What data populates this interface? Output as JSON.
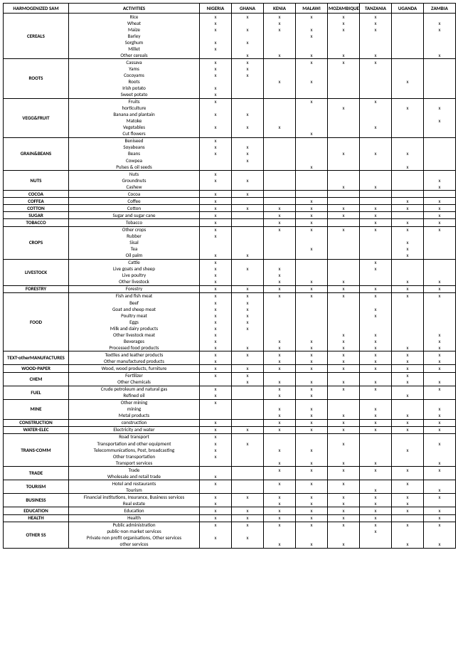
{
  "headers": {
    "sam": "HARMOGENIZED SAM",
    "activities": "ACTIVITIES",
    "countries": [
      "NIGERIA",
      "GHANA",
      "KENIA",
      "MALAWI",
      "MOZAMBIQUE",
      "TANZANIA",
      "UGANDA",
      "ZAMBIA"
    ]
  },
  "mark": "x",
  "groups": [
    {
      "cat": "CEREALS",
      "rows": [
        {
          "a": "Rice",
          "m": [
            1,
            1,
            1,
            1,
            1,
            1,
            0,
            0
          ]
        },
        {
          "a": "Wheat",
          "m": [
            1,
            0,
            1,
            0,
            1,
            1,
            0,
            1
          ]
        },
        {
          "a": "Maize",
          "m": [
            1,
            1,
            1,
            1,
            1,
            1,
            0,
            1
          ]
        },
        {
          "a": "Barley",
          "m": [
            0,
            0,
            0,
            1,
            0,
            0,
            0,
            0
          ]
        },
        {
          "a": "Sorghum",
          "m": [
            1,
            1,
            0,
            0,
            0,
            0,
            0,
            0
          ]
        },
        {
          "a": "Millet",
          "m": [
            1,
            0,
            0,
            0,
            0,
            0,
            0,
            0
          ]
        },
        {
          "a": "Other cereals",
          "m": [
            0,
            1,
            1,
            1,
            1,
            1,
            0,
            1
          ]
        }
      ]
    },
    {
      "cat": "ROOTS",
      "rows": [
        {
          "a": "Cassava",
          "m": [
            1,
            1,
            0,
            1,
            1,
            1,
            0,
            0
          ]
        },
        {
          "a": "Yams",
          "m": [
            1,
            1,
            0,
            0,
            0,
            0,
            0,
            0
          ]
        },
        {
          "a": "Cocoyams",
          "m": [
            1,
            1,
            0,
            0,
            0,
            0,
            0,
            0
          ]
        },
        {
          "a": "Roots",
          "m": [
            0,
            0,
            1,
            1,
            0,
            0,
            1,
            0
          ]
        },
        {
          "a": "Irish potato",
          "m": [
            1,
            0,
            0,
            0,
            0,
            0,
            0,
            0
          ]
        },
        {
          "a": "Sweet potato",
          "m": [
            1,
            0,
            0,
            0,
            0,
            0,
            0,
            0
          ]
        }
      ]
    },
    {
      "cat": "VEGG&FRUIT",
      "rows": [
        {
          "a": "Fruits",
          "m": [
            1,
            0,
            0,
            1,
            0,
            1,
            0,
            0
          ]
        },
        {
          "a": "horticulture",
          "m": [
            0,
            0,
            0,
            0,
            1,
            0,
            1,
            1
          ]
        },
        {
          "a": "Banana and plantain",
          "m": [
            1,
            1,
            0,
            0,
            0,
            0,
            0,
            0
          ]
        },
        {
          "a": "Matoke",
          "m": [
            0,
            0,
            0,
            0,
            0,
            0,
            0,
            1
          ]
        },
        {
          "a": "Vegetables",
          "m": [
            1,
            1,
            1,
            0,
            0,
            1,
            0,
            0
          ]
        },
        {
          "a": "Cut flowers",
          "m": [
            0,
            0,
            0,
            1,
            0,
            0,
            0,
            0
          ]
        }
      ]
    },
    {
      "cat": "GRAIN&BEANS",
      "rows": [
        {
          "a": "Beniseed",
          "m": [
            1,
            0,
            0,
            0,
            0,
            0,
            0,
            0
          ]
        },
        {
          "a": "Soyabeans",
          "m": [
            1,
            1,
            0,
            0,
            0,
            0,
            0,
            0
          ]
        },
        {
          "a": "Beans",
          "m": [
            1,
            1,
            0,
            0,
            1,
            1,
            1,
            0
          ]
        },
        {
          "a": "Cowpea",
          "m": [
            0,
            1,
            0,
            0,
            0,
            0,
            0,
            0
          ]
        },
        {
          "a": "Pulses & oil seeds",
          "m": [
            0,
            0,
            0,
            1,
            0,
            0,
            1,
            0
          ]
        }
      ]
    },
    {
      "cat": "NUTS",
      "rows": [
        {
          "a": "Nuts",
          "m": [
            1,
            0,
            0,
            0,
            0,
            0,
            0,
            0
          ]
        },
        {
          "a": "Groundnuts",
          "m": [
            1,
            1,
            0,
            0,
            0,
            0,
            0,
            1
          ]
        },
        {
          "a": "Cashew",
          "m": [
            0,
            0,
            0,
            0,
            1,
            1,
            0,
            1
          ]
        }
      ]
    },
    {
      "cat": "COCOA",
      "rows": [
        {
          "a": "Cocoa",
          "m": [
            1,
            1,
            0,
            0,
            0,
            0,
            0,
            0
          ]
        }
      ]
    },
    {
      "cat": "COFFEA",
      "rows": [
        {
          "a": "Coffee",
          "m": [
            1,
            0,
            0,
            1,
            0,
            0,
            1,
            1
          ]
        }
      ]
    },
    {
      "cat": "COTTON",
      "rows": [
        {
          "a": "Cotton",
          "m": [
            1,
            1,
            1,
            1,
            1,
            1,
            1,
            1
          ]
        }
      ]
    },
    {
      "cat": "SUGAR",
      "rows": [
        {
          "a": "Sugar and sugar cane",
          "m": [
            1,
            0,
            1,
            1,
            1,
            1,
            0,
            1
          ]
        }
      ]
    },
    {
      "cat": "TOBACCO",
      "rows": [
        {
          "a": "Tobacco",
          "m": [
            1,
            0,
            1,
            1,
            0,
            1,
            1,
            1
          ]
        }
      ]
    },
    {
      "cat": "CROPS",
      "rows": [
        {
          "a": "Other crops",
          "m": [
            1,
            0,
            1,
            1,
            1,
            1,
            1,
            1
          ]
        },
        {
          "a": "Rubber",
          "m": [
            1,
            0,
            0,
            0,
            0,
            0,
            0,
            0
          ]
        },
        {
          "a": "Sisal",
          "m": [
            0,
            0,
            0,
            0,
            0,
            0,
            1,
            0
          ]
        },
        {
          "a": "Tea",
          "m": [
            0,
            0,
            0,
            1,
            0,
            0,
            1,
            0
          ]
        },
        {
          "a": "Oil palm",
          "m": [
            1,
            1,
            0,
            0,
            0,
            0,
            1,
            0
          ]
        }
      ]
    },
    {
      "cat": "LIVESTOCK",
      "rows": [
        {
          "a": "Cattle",
          "m": [
            1,
            0,
            0,
            0,
            0,
            1,
            0,
            0
          ]
        },
        {
          "a": "Live goats and sheep",
          "m": [
            1,
            1,
            1,
            0,
            0,
            1,
            0,
            0
          ]
        },
        {
          "a": "Live poultry",
          "m": [
            1,
            0,
            1,
            0,
            0,
            0,
            0,
            0
          ]
        },
        {
          "a": "Other livestock",
          "m": [
            1,
            0,
            1,
            1,
            1,
            0,
            1,
            1
          ]
        }
      ]
    },
    {
      "cat": "FORESTRY",
      "rows": [
        {
          "a": "Forestry",
          "m": [
            1,
            1,
            1,
            1,
            1,
            1,
            1,
            1
          ]
        }
      ]
    },
    {
      "cat": "FOOD",
      "rows": [
        {
          "a": "Fish and fish meat",
          "m": [
            1,
            1,
            1,
            1,
            1,
            1,
            1,
            1
          ]
        },
        {
          "a": "Beef",
          "m": [
            1,
            1,
            0,
            0,
            0,
            0,
            0,
            0
          ]
        },
        {
          "a": "Goat and sheep meat",
          "m": [
            1,
            1,
            0,
            0,
            0,
            1,
            0,
            0
          ]
        },
        {
          "a": "Poultry meat",
          "m": [
            1,
            1,
            0,
            0,
            0,
            1,
            0,
            0
          ]
        },
        {
          "a": "Eggs",
          "m": [
            1,
            1,
            0,
            0,
            0,
            0,
            0,
            0
          ]
        },
        {
          "a": "Milk and dairy products",
          "m": [
            1,
            1,
            0,
            0,
            0,
            0,
            0,
            0
          ]
        },
        {
          "a": "Other livestock meat",
          "m": [
            1,
            0,
            0,
            0,
            1,
            1,
            0,
            1
          ]
        },
        {
          "a": "Beverages",
          "m": [
            1,
            0,
            1,
            1,
            1,
            1,
            0,
            1
          ]
        },
        {
          "a": "Processed food products",
          "m": [
            1,
            1,
            1,
            1,
            1,
            1,
            1,
            1
          ]
        }
      ]
    },
    {
      "cat": "TEXT-otherMANUFACTURES",
      "rows": [
        {
          "a": "Textiles and leather products",
          "m": [
            1,
            1,
            1,
            1,
            1,
            1,
            1,
            1
          ]
        },
        {
          "a": "Other manufactured products",
          "m": [
            1,
            0,
            1,
            1,
            1,
            1,
            1,
            1
          ]
        }
      ]
    },
    {
      "cat": "WOOD-PAPER",
      "rows": [
        {
          "a": "Wood, wood products, furniture",
          "m": [
            1,
            1,
            1,
            1,
            1,
            1,
            1,
            1
          ]
        }
      ]
    },
    {
      "cat": "CHEM",
      "rows": [
        {
          "a": "Fertilizer",
          "m": [
            1,
            1,
            0,
            0,
            0,
            0,
            1,
            0
          ]
        },
        {
          "a": "Other Chemicals",
          "m": [
            0,
            1,
            1,
            1,
            1,
            1,
            1,
            1
          ]
        }
      ]
    },
    {
      "cat": "FUEL",
      "rows": [
        {
          "a": "Crude petroleum and natural gas",
          "m": [
            1,
            0,
            1,
            1,
            1,
            1,
            0,
            1
          ]
        },
        {
          "a": "Refined oil",
          "m": [
            1,
            0,
            1,
            1,
            0,
            0,
            1,
            0
          ]
        }
      ]
    },
    {
      "cat": "MINE",
      "rows": [
        {
          "a": "Other mining",
          "m": [
            1,
            0,
            0,
            0,
            0,
            0,
            0,
            0
          ]
        },
        {
          "a": "mining",
          "m": [
            0,
            0,
            1,
            1,
            0,
            1,
            0,
            1
          ]
        },
        {
          "a": "Metal products",
          "m": [
            0,
            0,
            1,
            1,
            1,
            1,
            1,
            1
          ]
        }
      ]
    },
    {
      "cat": "CONSTRUCTION",
      "rows": [
        {
          "a": "construction",
          "m": [
            1,
            0,
            1,
            1,
            1,
            1,
            1,
            1
          ]
        }
      ]
    },
    {
      "cat": "WATER-ELEC",
      "rows": [
        {
          "a": "Electricity and water",
          "m": [
            1,
            1,
            1,
            1,
            1,
            1,
            1,
            1
          ]
        }
      ]
    },
    {
      "cat": "TRANS-COMM",
      "rows": [
        {
          "a": "Road transport",
          "m": [
            1,
            0,
            0,
            0,
            0,
            0,
            0,
            0
          ]
        },
        {
          "a": "Transportation and other equipment",
          "m": [
            1,
            1,
            0,
            0,
            1,
            0,
            0,
            1
          ]
        },
        {
          "a": "Telecommunications, Post, broadcasting",
          "m": [
            1,
            0,
            1,
            1,
            0,
            0,
            1,
            0
          ]
        },
        {
          "a": "Other transportation",
          "m": [
            1,
            0,
            0,
            0,
            0,
            0,
            0,
            0
          ]
        },
        {
          "a": "Transport services",
          "m": [
            0,
            0,
            1,
            1,
            1,
            1,
            0,
            1
          ]
        }
      ]
    },
    {
      "cat": "TRADE",
      "rows": [
        {
          "a": "Trade",
          "m": [
            0,
            0,
            1,
            1,
            1,
            1,
            1,
            1
          ]
        },
        {
          "a": "Wholesale and retail trade",
          "m": [
            1,
            0,
            0,
            0,
            0,
            0,
            0,
            0
          ]
        }
      ]
    },
    {
      "cat": "TOURISM",
      "rows": [
        {
          "a": "Hotel and restaurants",
          "m": [
            1,
            0,
            1,
            1,
            1,
            0,
            1,
            0
          ]
        },
        {
          "a": "Tourism",
          "m": [
            0,
            0,
            0,
            0,
            0,
            1,
            0,
            1
          ]
        }
      ]
    },
    {
      "cat": "BUSINESS",
      "rows": [
        {
          "a": "Financial institutions, Insurance, Business services",
          "m": [
            1,
            1,
            1,
            1,
            1,
            1,
            1,
            1
          ]
        },
        {
          "a": "Real estate",
          "m": [
            1,
            0,
            1,
            1,
            1,
            1,
            1,
            0
          ]
        }
      ]
    },
    {
      "cat": "EDUCATION",
      "rows": [
        {
          "a": "Education",
          "m": [
            1,
            1,
            1,
            1,
            1,
            1,
            1,
            1
          ]
        }
      ]
    },
    {
      "cat": "HEALTH",
      "rows": [
        {
          "a": "Health",
          "m": [
            1,
            1,
            1,
            1,
            1,
            1,
            0,
            1
          ]
        }
      ]
    },
    {
      "cat": "OTHER SS",
      "rows": [
        {
          "a": "Public administration",
          "m": [
            1,
            1,
            1,
            1,
            1,
            1,
            1,
            1
          ]
        },
        {
          "a": "public-non market services",
          "m": [
            0,
            0,
            0,
            0,
            0,
            1,
            0,
            0
          ]
        },
        {
          "a": "Private non profit organisations, Other services",
          "m": [
            1,
            1,
            0,
            0,
            0,
            0,
            0,
            0
          ]
        },
        {
          "a": "other services",
          "m": [
            0,
            0,
            1,
            1,
            1,
            0,
            1,
            1
          ]
        }
      ]
    }
  ],
  "colors": {
    "border": "#000000",
    "text": "#000000",
    "bg": "#ffffff"
  },
  "font": {
    "family": "Calibri",
    "header_size": 7,
    "cell_size": 7
  }
}
